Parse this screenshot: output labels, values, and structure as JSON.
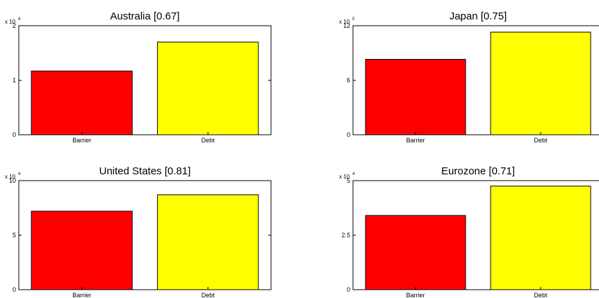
{
  "colors": {
    "barrier": "#ff0000",
    "debt": "#ffff00",
    "axis": "#000000",
    "background": "#ffffff"
  },
  "chart_data": [
    {
      "type": "bar",
      "title": "Australia  [0.67]",
      "categories": [
        "Barrier",
        "Debt"
      ],
      "values": [
        11700,
        17000
      ],
      "ylim": [
        0,
        20000
      ],
      "yticks": [
        0,
        10000,
        20000
      ],
      "ytick_labels": [
        "0",
        "1",
        "2"
      ],
      "multiplier": {
        "base": "x 10",
        "exponent": "4"
      },
      "grid": false
    },
    {
      "type": "bar",
      "title": "Japan  [0.75]",
      "categories": [
        "Barrier",
        "Debt"
      ],
      "values": [
        830000,
        1130000
      ],
      "ylim": [
        0,
        1200000
      ],
      "yticks": [
        0,
        600000,
        1200000
      ],
      "ytick_labels": [
        "0",
        "6",
        "12"
      ],
      "multiplier": {
        "base": "x 10",
        "exponent": "5"
      },
      "grid": false
    },
    {
      "type": "bar",
      "title": "United States  [0.81]",
      "categories": [
        "Barrier",
        "Debt"
      ],
      "values": [
        72000,
        87000
      ],
      "ylim": [
        0,
        100000
      ],
      "yticks": [
        0,
        50000,
        100000
      ],
      "ytick_labels": [
        "0",
        "5",
        "10"
      ],
      "multiplier": {
        "base": "x 10",
        "exponent": "4"
      },
      "grid": false
    },
    {
      "type": "bar",
      "title": "Eurozone  [0.71]",
      "categories": [
        "Barrier",
        "Debt"
      ],
      "values": [
        34000,
        47500
      ],
      "ylim": [
        0,
        50000
      ],
      "yticks": [
        0,
        25000,
        50000
      ],
      "ytick_labels": [
        "0",
        "2.5",
        "5"
      ],
      "multiplier": {
        "base": "x 10",
        "exponent": "4"
      },
      "grid": false
    }
  ]
}
